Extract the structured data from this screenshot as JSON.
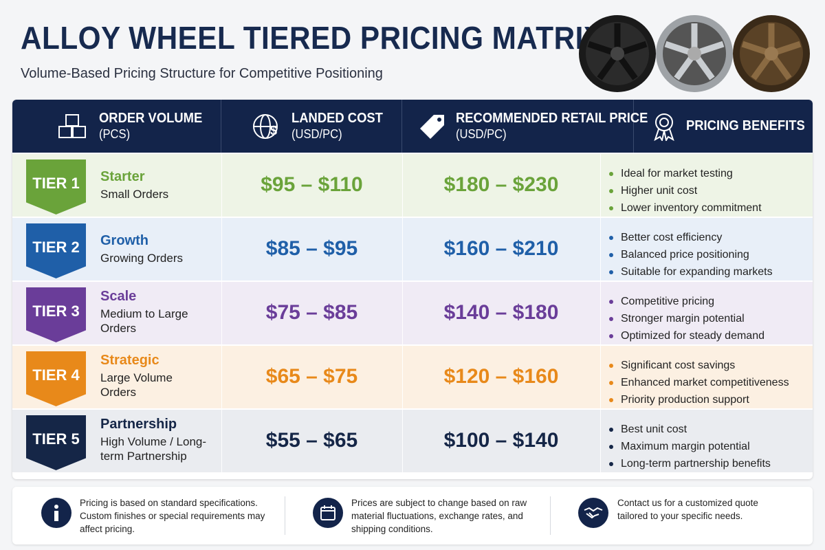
{
  "header": {
    "title": "ALLOY WHEEL TIERED PRICING MATRIX",
    "subtitle": "Volume-Based Pricing Structure for Competitive Positioning"
  },
  "table": {
    "columns": [
      {
        "title": "ORDER VOLUME",
        "unit": "(PCS)"
      },
      {
        "title": "LANDED COST",
        "unit": "(USD/PC)"
      },
      {
        "title": "RECOMMENDED RETAIL PRICE",
        "unit": "(USD/PC)"
      },
      {
        "title": "PRICING BENEFITS"
      }
    ],
    "rows": [
      {
        "tier": "TIER 1",
        "name": "Starter",
        "description": "Small Orders",
        "landed_cost": "$95 – $110",
        "retail_price": "$180 – $230",
        "benefits": [
          "Ideal for market testing",
          "Higher unit cost",
          "Lower inventory commitment"
        ]
      },
      {
        "tier": "TIER 2",
        "name": "Growth",
        "description": "Growing Orders",
        "landed_cost": "$85 – $95",
        "retail_price": "$160 – $210",
        "benefits": [
          "Better cost efficiency",
          "Balanced price positioning",
          "Suitable for expanding markets"
        ]
      },
      {
        "tier": "TIER 3",
        "name": "Scale",
        "description": "Medium to Large Orders",
        "landed_cost": "$75 – $85",
        "retail_price": "$140 – $180",
        "benefits": [
          "Competitive pricing",
          "Stronger margin potential",
          "Optimized for steady demand"
        ]
      },
      {
        "tier": "TIER 4",
        "name": "Strategic",
        "description": "Large Volume Orders",
        "landed_cost": "$65 – $75",
        "retail_price": "$120 – $160",
        "benefits": [
          "Significant cost savings",
          "Enhanced market competitiveness",
          "Priority production support"
        ]
      },
      {
        "tier": "TIER 5",
        "name": "Partnership",
        "description": "High Volume / Long-term Partnership",
        "landed_cost": "$55 – $65",
        "retail_price": "$100 – $140",
        "benefits": [
          "Best unit cost",
          "Maximum margin potential",
          "Long-term partnership benefits"
        ]
      }
    ]
  },
  "footer": {
    "notes": [
      "Pricing is based on standard specifications. Custom finishes or special requirements may affect pricing.",
      "Prices are subject to change based on raw material fluctuations, exchange rates, and shipping conditions.",
      "Contact us for a customized quote tailored to your specific needs."
    ]
  }
}
